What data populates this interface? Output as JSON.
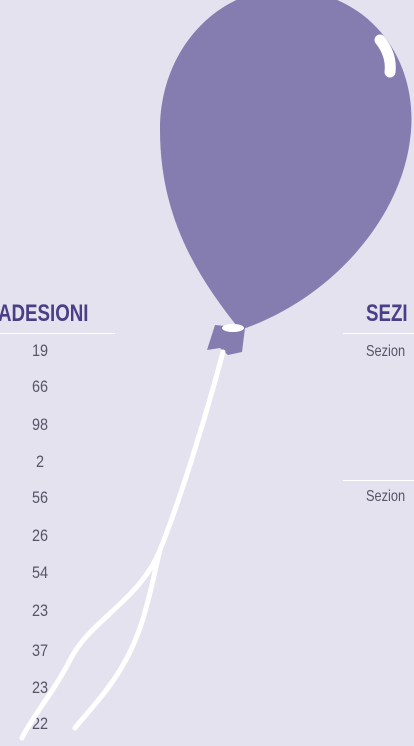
{
  "left_table": {
    "header": "ADESIONI",
    "rows": [
      19,
      66,
      98,
      2,
      56,
      26,
      54,
      23,
      37,
      23,
      22
    ]
  },
  "right_table": {
    "header": "SEZI",
    "rows": [
      "Sezion",
      "Sezion"
    ]
  }
}
